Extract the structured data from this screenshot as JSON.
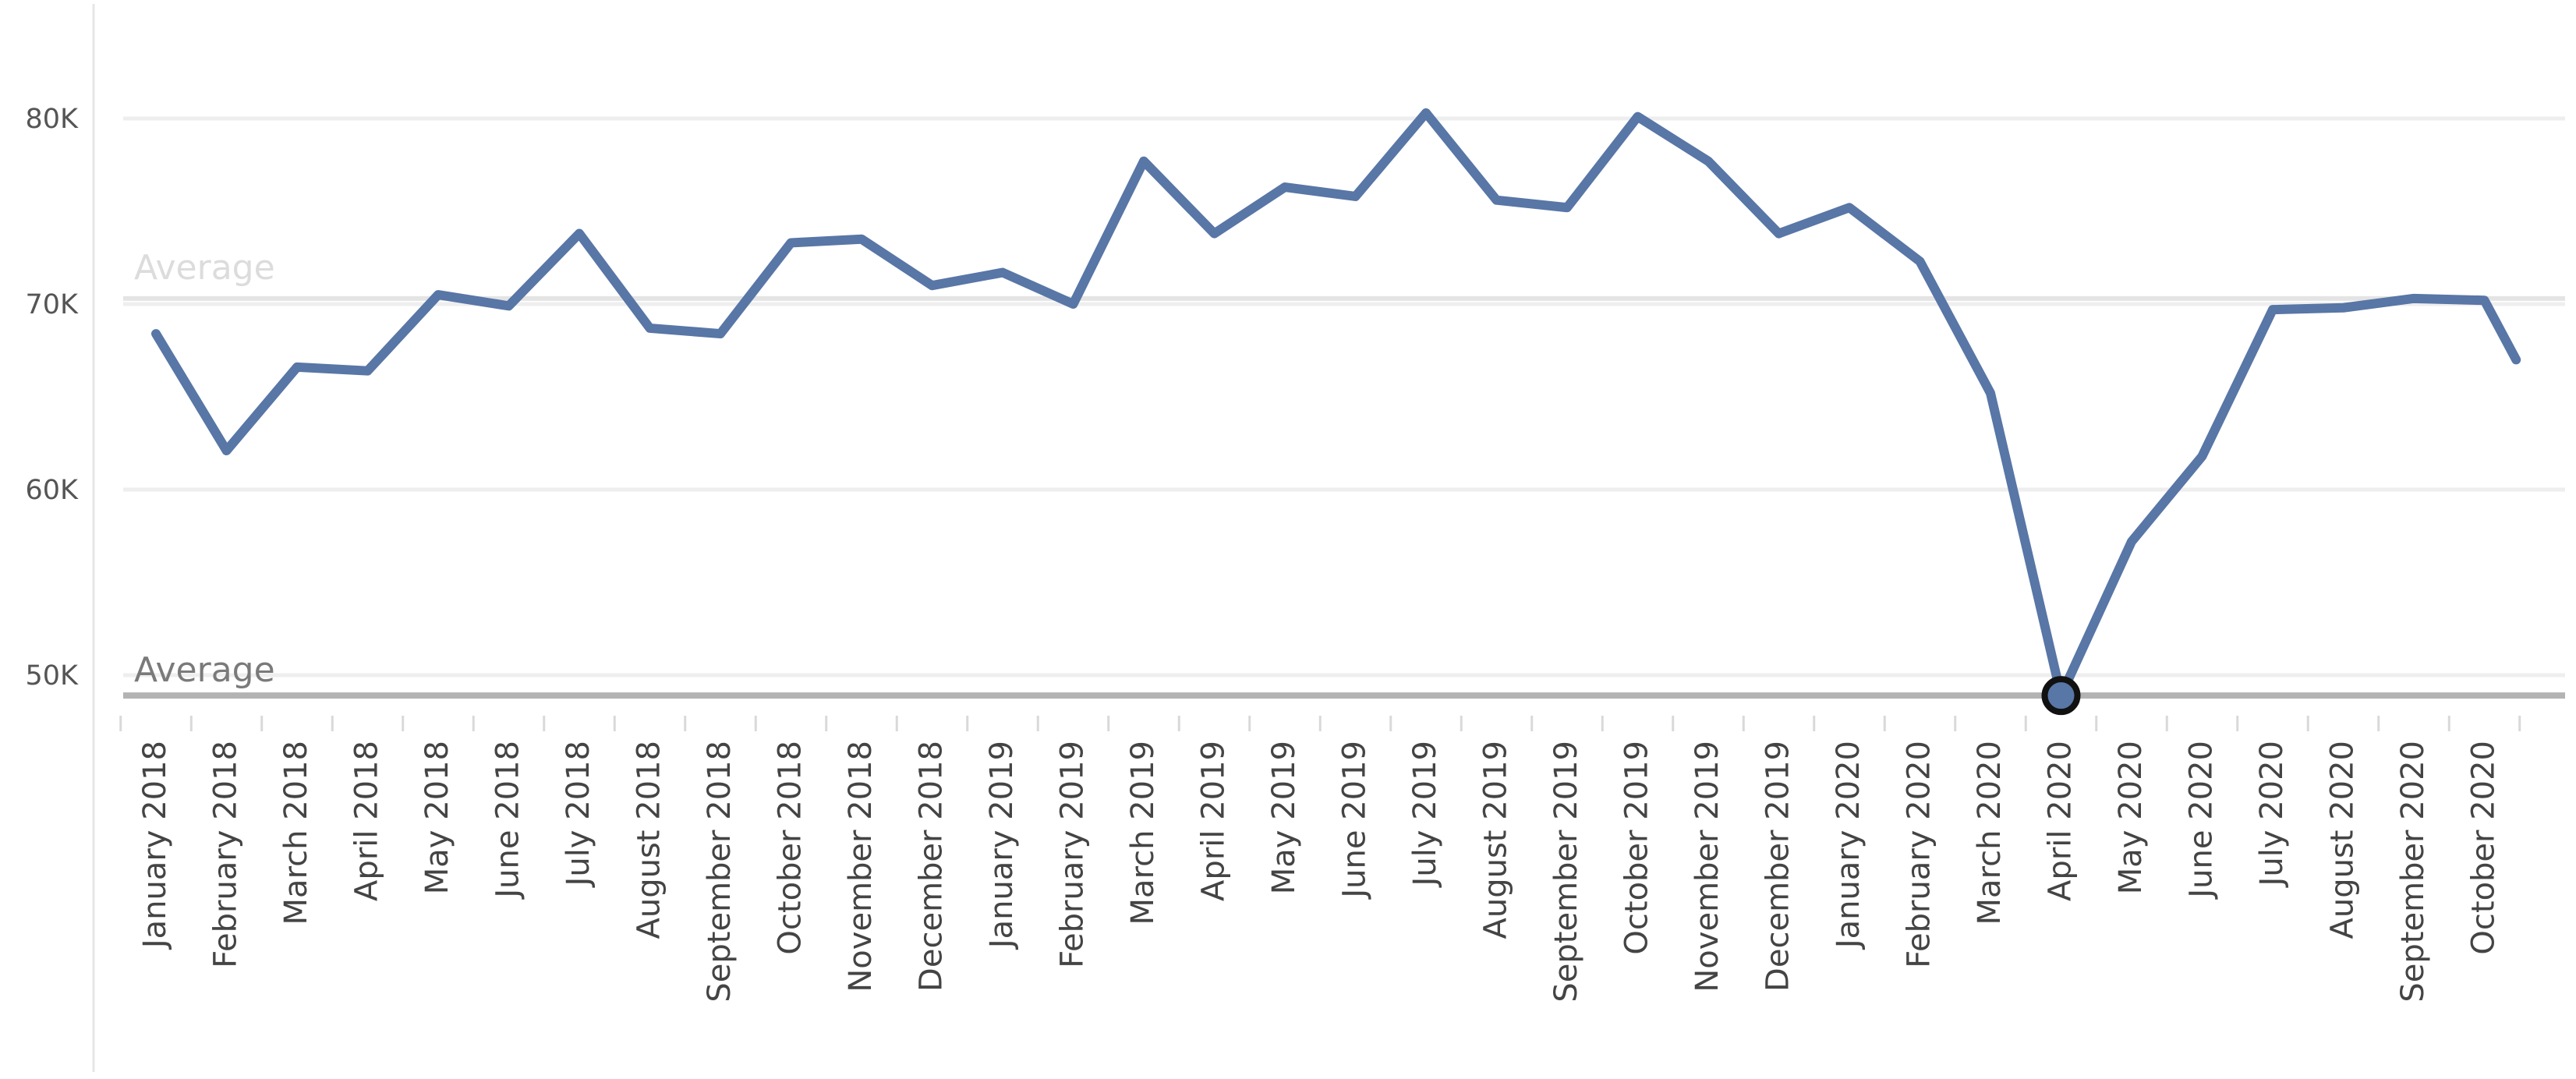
{
  "chart_data": {
    "type": "line",
    "title": "",
    "xlabel": "",
    "ylabel": "",
    "ylim": [
      46500,
      82500
    ],
    "y_ticks": [
      50000,
      60000,
      70000,
      80000
    ],
    "y_tick_labels": [
      "50K",
      "60K",
      "70K",
      "80K"
    ],
    "grid": true,
    "categories": [
      "January 2018",
      "February 2018",
      "March 2018",
      "April 2018",
      "May 2018",
      "June 2018",
      "July 2018",
      "August 2018",
      "September 2018",
      "October 2018",
      "November 2018",
      "December 2018",
      "January 2019",
      "February 2019",
      "March 2019",
      "April 2019",
      "May 2019",
      "June 2019",
      "July 2019",
      "August 2019",
      "September 2019",
      "October 2019",
      "November 2019",
      "December 2019",
      "January 2020",
      "February 2020",
      "March 2020",
      "April 2020",
      "May 2020",
      "June 2020",
      "July 2020",
      "August 2020",
      "September 2020",
      "October 2020"
    ],
    "series": [
      {
        "color": "#5876a6",
        "values": [
          68400,
          62100,
          66600,
          66400,
          70500,
          69900,
          73800,
          68700,
          68400,
          73300,
          73500,
          71000,
          71700,
          70000,
          77700,
          73800,
          76300,
          75800,
          80300,
          75600,
          75200,
          80100,
          77700,
          73800,
          75200,
          72300,
          65200,
          48900,
          57200,
          61800,
          69700,
          69800,
          70300,
          70200
        ]
      }
    ],
    "trailing_value": 67000,
    "highlighted_point": {
      "category": "April 2020",
      "value": 48900
    },
    "reference_lines": [
      {
        "label": "Average",
        "value": 48900,
        "color": "#b3b3b3"
      },
      {
        "label": "Average",
        "value": 70300,
        "color": "#e4e4e4"
      }
    ]
  }
}
